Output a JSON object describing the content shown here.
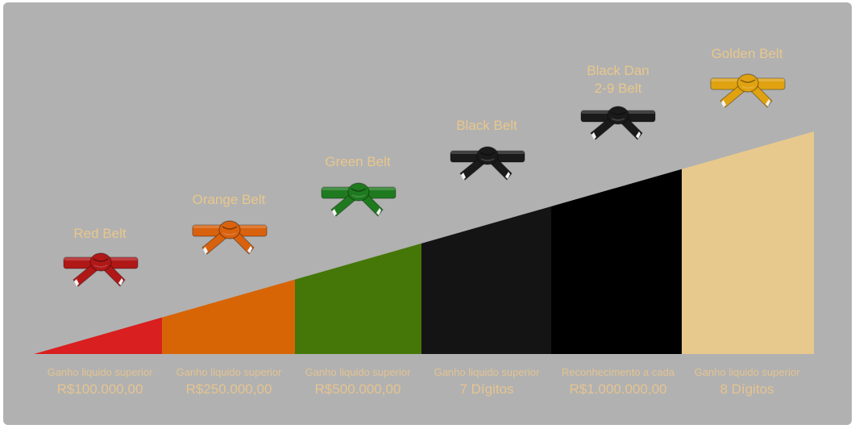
{
  "colors": {
    "background": "#b1b1b1",
    "text": "#e9c78b"
  },
  "levels": [
    {
      "title": "Red Belt",
      "belt_color": "#b01818",
      "segment_color": "#d91f1f",
      "caption_line1": "Ganho liquido superior",
      "caption_line2": "R$100.000,00"
    },
    {
      "title": "Orange Belt",
      "belt_color": "#d9620e",
      "segment_color": "#d76506",
      "caption_line1": "Ganho liquido superior",
      "caption_line2": "R$250.000,00"
    },
    {
      "title": "Green Belt",
      "belt_color": "#1f7a1f",
      "segment_color": "#447707",
      "caption_line1": "Ganho liquido superior",
      "caption_line2": "R$500.000,00"
    },
    {
      "title": "Black Belt",
      "belt_color": "#1a1a1a",
      "segment_color": "#141414",
      "caption_line1": "Ganho liquido superior",
      "caption_line2": "7 Dígitos"
    },
    {
      "title": "Black Dan\n2-9 Belt",
      "belt_color": "#1a1a1a",
      "segment_color": "#000000",
      "caption_line1": "Reconhecimento a cada",
      "caption_line2": "R$1.000.000,00"
    },
    {
      "title": "Golden Belt",
      "belt_color": "#e0a210",
      "segment_color": "#e7c98e",
      "caption_line1": "Ganho liquido superior",
      "caption_line2": "8 Dígitos"
    }
  ]
}
